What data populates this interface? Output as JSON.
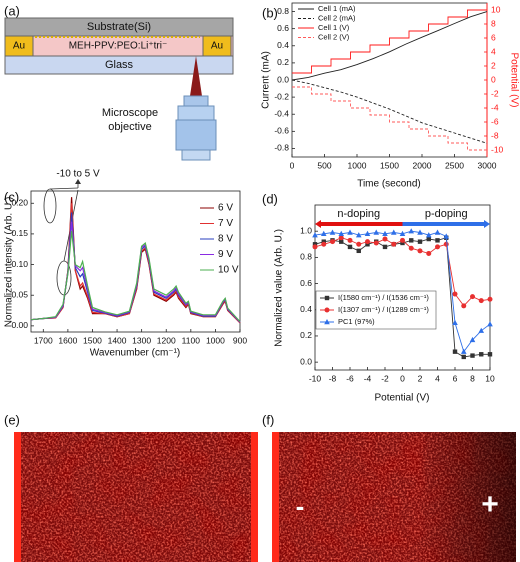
{
  "panel_labels": [
    "(a)",
    "(b)",
    "(c)",
    "(d)",
    "(e)",
    "(f)"
  ],
  "diagram": {
    "substrate": "Substrate(Si)",
    "electrode_left": "Au",
    "active_layer": "MEH-PPV:PEO:Li⁺tri⁻",
    "electrode_right": "Au",
    "glass": "Glass",
    "objective": [
      "Microscope",
      "objective"
    ]
  },
  "images": {
    "f_left": "-",
    "f_right": "+"
  },
  "chart_data": [
    {
      "type": "line",
      "xlabel": "Time (second)",
      "ylabel": "Current (mA)",
      "y2label": "Potential (V)",
      "xlim": [
        0,
        3000
      ],
      "xticks": [
        0,
        500,
        1000,
        1500,
        2000,
        2500,
        3000
      ],
      "ylim": [
        -0.9,
        0.9
      ],
      "yticks": [
        -0.8,
        -0.6,
        -0.4,
        -0.2,
        {
          "value": 0,
          "label": "0.0"
        },
        0.2,
        0.4,
        0.6,
        0.8
      ],
      "y2lim": [
        -11,
        11
      ],
      "y2ticks": [
        -10,
        -8,
        -6,
        -4,
        -2,
        0,
        2,
        4,
        6,
        8,
        10
      ],
      "legend": "upper left",
      "series": [
        {
          "name": "Cell 1 (mA)",
          "color": "#222222",
          "dash": false,
          "x": [
            0,
            250,
            500,
            750,
            1000,
            1250,
            1500,
            1750,
            2000,
            2250,
            2500,
            2750,
            3000
          ],
          "values": [
            0.0,
            0.03,
            0.08,
            0.12,
            0.18,
            0.25,
            0.33,
            0.42,
            0.5,
            0.58,
            0.66,
            0.74,
            0.8
          ]
        },
        {
          "name": "Cell 2 (mA)",
          "color": "#222222",
          "dash": true,
          "x": [
            0,
            250,
            500,
            750,
            1000,
            1250,
            1500,
            1750,
            2000,
            2250,
            2500,
            2750,
            3000
          ],
          "values": [
            0.0,
            -0.04,
            -0.09,
            -0.14,
            -0.2,
            -0.27,
            -0.34,
            -0.42,
            -0.5,
            -0.56,
            -0.62,
            -0.68,
            -0.74
          ]
        },
        {
          "name": "Cell 1 (V)",
          "color": "#ff1a1a",
          "dash": false,
          "axis": "y2",
          "x": [
            0,
            300,
            300,
            600,
            600,
            900,
            900,
            1200,
            1200,
            1500,
            1500,
            1800,
            1800,
            2100,
            2100,
            2400,
            2400,
            2700,
            2700,
            3000
          ],
          "values": [
            1,
            1,
            2,
            2,
            3,
            3,
            4,
            4,
            5,
            5,
            6,
            6,
            7,
            7,
            8,
            8,
            9,
            9,
            10,
            10
          ]
        },
        {
          "name": "Cell 2 (V)",
          "color": "#ff5a5a",
          "dash": true,
          "axis": "y2",
          "x": [
            0,
            300,
            300,
            600,
            600,
            900,
            900,
            1200,
            1200,
            1500,
            1500,
            1800,
            1800,
            2100,
            2100,
            2400,
            2400,
            2700,
            2700,
            3000
          ],
          "values": [
            -1,
            -1,
            -2,
            -2,
            -3,
            -3,
            -4,
            -4,
            -5,
            -5,
            -6,
            -6,
            -7,
            -7,
            -8,
            -8,
            -9,
            -9,
            -10,
            -10
          ]
        }
      ]
    },
    {
      "type": "line",
      "xlabel": "Wavenumber (cm⁻¹)",
      "ylabel": "Normalized intensity (Arb. U.)",
      "xlim": [
        1750,
        900
      ],
      "xticks": [
        1700,
        1600,
        1500,
        1400,
        1300,
        1200,
        1100,
        1000,
        900
      ],
      "ylim": [
        -0.01,
        0.22
      ],
      "yticks": [
        {
          "value": 0,
          "label": "0.00"
        },
        {
          "value": 0.05,
          "label": "0.05"
        },
        {
          "value": 0.1,
          "label": "0.10"
        },
        {
          "value": 0.15,
          "label": "0.15"
        },
        {
          "value": 0.2,
          "label": "0.20"
        }
      ],
      "legend": "upper right",
      "annotation": "-10 to 5 V",
      "x": [
        1750,
        1700,
        1650,
        1620,
        1600,
        1585,
        1570,
        1550,
        1540,
        1520,
        1500,
        1450,
        1400,
        1350,
        1320,
        1300,
        1285,
        1270,
        1250,
        1200,
        1170,
        1160,
        1150,
        1120,
        1110,
        1100,
        1050,
        1000,
        970,
        960,
        950,
        900
      ],
      "series": [
        {
          "name": "6 V",
          "color": "#8b0000",
          "values": [
            0.01,
            0.012,
            0.013,
            0.03,
            0.09,
            0.21,
            0.09,
            0.06,
            0.065,
            0.045,
            0.02,
            0.02,
            0.015,
            0.02,
            0.06,
            0.12,
            0.125,
            0.1,
            0.05,
            0.04,
            0.05,
            0.055,
            0.045,
            0.03,
            0.035,
            0.02,
            0.015,
            0.015,
            0.035,
            0.04,
            0.025,
            0.005
          ]
        },
        {
          "name": "7 V",
          "color": "#e03030",
          "values": [
            0.01,
            0.012,
            0.013,
            0.03,
            0.09,
            0.2,
            0.09,
            0.065,
            0.07,
            0.048,
            0.022,
            0.02,
            0.015,
            0.02,
            0.062,
            0.122,
            0.127,
            0.102,
            0.052,
            0.042,
            0.052,
            0.057,
            0.047,
            0.032,
            0.036,
            0.021,
            0.015,
            0.015,
            0.036,
            0.041,
            0.026,
            0.005
          ]
        },
        {
          "name": "8 V",
          "color": "#2a3fbf",
          "values": [
            0.01,
            0.012,
            0.014,
            0.032,
            0.088,
            0.185,
            0.095,
            0.08,
            0.085,
            0.055,
            0.025,
            0.021,
            0.016,
            0.022,
            0.065,
            0.125,
            0.13,
            0.105,
            0.055,
            0.045,
            0.055,
            0.06,
            0.05,
            0.034,
            0.038,
            0.022,
            0.016,
            0.016,
            0.038,
            0.043,
            0.027,
            0.006
          ]
        },
        {
          "name": "9 V",
          "color": "#8a2be2",
          "values": [
            0.01,
            0.012,
            0.014,
            0.033,
            0.086,
            0.17,
            0.098,
            0.09,
            0.095,
            0.06,
            0.027,
            0.022,
            0.017,
            0.023,
            0.067,
            0.128,
            0.132,
            0.107,
            0.057,
            0.047,
            0.057,
            0.062,
            0.052,
            0.035,
            0.039,
            0.023,
            0.017,
            0.017,
            0.039,
            0.044,
            0.028,
            0.006
          ]
        },
        {
          "name": "10 V",
          "color": "#4caf50",
          "values": [
            0.01,
            0.012,
            0.015,
            0.035,
            0.085,
            0.155,
            0.1,
            0.095,
            0.105,
            0.065,
            0.03,
            0.023,
            0.018,
            0.024,
            0.07,
            0.13,
            0.135,
            0.11,
            0.06,
            0.05,
            0.06,
            0.065,
            0.055,
            0.037,
            0.04,
            0.024,
            0.018,
            0.018,
            0.04,
            0.045,
            0.029,
            0.007
          ]
        }
      ]
    },
    {
      "type": "line",
      "xlabel": "Potential (V)",
      "ylabel": "Normalized value (Arb. U.)",
      "xlim": [
        -10,
        10
      ],
      "xticks": [
        -10,
        -8,
        -6,
        -4,
        -2,
        0,
        2,
        4,
        6,
        8,
        10
      ],
      "ylim": [
        -0.06,
        1.2
      ],
      "yticks": [
        {
          "value": 0,
          "label": "0.0"
        },
        0.2,
        0.4,
        0.6,
        0.8,
        {
          "value": 1,
          "label": "1.0"
        }
      ],
      "legend": "lower left",
      "annotations": [
        "n-doping",
        "p-doping"
      ],
      "x": [
        -10,
        -9,
        -8,
        -7,
        -6,
        -5,
        -4,
        -3,
        -2,
        -1,
        0,
        1,
        2,
        3,
        4,
        5,
        6,
        7,
        8,
        9,
        10
      ],
      "series": [
        {
          "name": "I(1580 cm⁻¹) / I(1536 cm⁻¹)",
          "color": "#333333",
          "marker": "square",
          "values": [
            0.9,
            0.92,
            0.93,
            0.92,
            0.88,
            0.85,
            0.9,
            0.92,
            0.88,
            0.9,
            0.91,
            0.93,
            0.92,
            0.94,
            0.93,
            0.95,
            0.08,
            0.04,
            0.05,
            0.06,
            0.06
          ]
        },
        {
          "name": "I(1307 cm⁻¹) / I(1289 cm⁻¹)",
          "color": "#e83030",
          "marker": "circle",
          "values": [
            0.88,
            0.9,
            0.92,
            0.95,
            0.93,
            0.9,
            0.92,
            0.91,
            0.94,
            0.9,
            0.93,
            0.87,
            0.85,
            0.83,
            0.88,
            0.9,
            0.52,
            0.43,
            0.5,
            0.47,
            0.48
          ]
        },
        {
          "name": "PC1 (97%)",
          "color": "#2e6fe8",
          "marker": "triangle",
          "values": [
            0.97,
            0.98,
            0.99,
            0.98,
            0.99,
            0.97,
            0.98,
            0.99,
            0.98,
            0.99,
            0.98,
            1.0,
            0.99,
            0.97,
            0.99,
            0.96,
            0.3,
            0.08,
            0.17,
            0.24,
            0.29
          ]
        }
      ]
    }
  ]
}
